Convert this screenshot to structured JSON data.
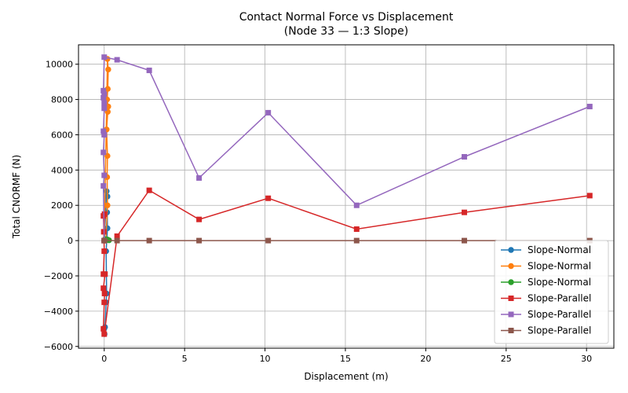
{
  "chart_data": {
    "type": "line",
    "title": "Contact Normal Force vs Displacement",
    "subtitle": "(Node 33 — 1:3 Slope)",
    "xlabel": "Displacement (m)",
    "ylabel": "Total CNORMF (N)",
    "xlim": [
      -1.6,
      31.7
    ],
    "ylim": [
      -6100,
      11100
    ],
    "xticks": [
      "0",
      "5",
      "10",
      "15",
      "20",
      "25",
      "30"
    ],
    "xtick_values": [
      0,
      5,
      10,
      15,
      20,
      25,
      30
    ],
    "yticks": [
      "−6000",
      "−4000",
      "−2000",
      "0",
      "2000",
      "4000",
      "6000",
      "8000",
      "10000"
    ],
    "ytick_values": [
      -6000,
      -4000,
      -2000,
      0,
      2000,
      4000,
      6000,
      8000,
      10000
    ],
    "grid": true,
    "legend_position": "lower-right",
    "series": [
      {
        "name": "Slope-Normal",
        "color": "#1f77b4",
        "marker": "circle",
        "points": [
          [
            0,
            0
          ],
          [
            0.15,
            2800
          ],
          [
            0.2,
            2500
          ],
          [
            0.18,
            1600
          ],
          [
            0.2,
            700
          ],
          [
            0.12,
            -600
          ],
          [
            0.15,
            -3000
          ],
          [
            0.12,
            -3500
          ],
          [
            0.05,
            -4900
          ],
          [
            0.02,
            -5300
          ],
          [
            0,
            -5000
          ]
        ]
      },
      {
        "name": "Slope-Normal",
        "color": "#ff7f0e",
        "marker": "circle",
        "points": [
          [
            0,
            0
          ],
          [
            0.2,
            10300
          ],
          [
            0.25,
            9700
          ],
          [
            0.22,
            8600
          ],
          [
            0.18,
            8000
          ],
          [
            0.25,
            7600
          ],
          [
            0.22,
            7300
          ],
          [
            0.15,
            6300
          ],
          [
            0.2,
            4800
          ],
          [
            0.18,
            3600
          ],
          [
            0.2,
            2000
          ],
          [
            0.1,
            0
          ]
        ]
      },
      {
        "name": "Slope-Normal",
        "color": "#2ca02c",
        "marker": "circle",
        "points": [
          [
            0,
            0
          ],
          [
            0.05,
            80
          ],
          [
            0.1,
            60
          ],
          [
            0.15,
            40
          ],
          [
            0.2,
            60
          ],
          [
            0.25,
            30
          ],
          [
            0.3,
            20
          ]
        ]
      },
      {
        "name": "Slope-Parallel",
        "color": "#d62728",
        "marker": "square",
        "points": [
          [
            0,
            0
          ],
          [
            -0.05,
            1400
          ],
          [
            0.02,
            1500
          ],
          [
            -0.03,
            500
          ],
          [
            0,
            -600
          ],
          [
            -0.05,
            -1900
          ],
          [
            0.05,
            -1900
          ],
          [
            -0.05,
            -2700
          ],
          [
            0.02,
            -3000
          ],
          [
            0,
            -3500
          ],
          [
            -0.05,
            -5000
          ],
          [
            0,
            -5300
          ],
          [
            0.8,
            250
          ],
          [
            2.8,
            2850
          ],
          [
            5.9,
            1200
          ],
          [
            10.2,
            2400
          ],
          [
            15.7,
            650
          ],
          [
            22.4,
            1600
          ],
          [
            30.2,
            2550
          ]
        ]
      },
      {
        "name": "Slope-Parallel",
        "color": "#9467bd",
        "marker": "square",
        "points": [
          [
            0,
            0
          ],
          [
            -0.05,
            3100
          ],
          [
            0,
            3700
          ],
          [
            -0.05,
            5000
          ],
          [
            0,
            6000
          ],
          [
            -0.05,
            6200
          ],
          [
            0,
            7500
          ],
          [
            0,
            7800
          ],
          [
            -0.05,
            8100
          ],
          [
            0,
            8300
          ],
          [
            -0.05,
            8500
          ],
          [
            0,
            10400
          ],
          [
            0.8,
            10250
          ],
          [
            2.8,
            9650
          ],
          [
            5.9,
            3550
          ],
          [
            10.2,
            7250
          ],
          [
            15.7,
            2000
          ],
          [
            22.4,
            4750
          ],
          [
            30.2,
            7600
          ]
        ]
      },
      {
        "name": "Slope-Parallel",
        "color": "#8c564b",
        "marker": "square",
        "points": [
          [
            0,
            0
          ],
          [
            0.8,
            0
          ],
          [
            2.8,
            0
          ],
          [
            5.9,
            0
          ],
          [
            10.2,
            0
          ],
          [
            15.7,
            0
          ],
          [
            22.4,
            0
          ],
          [
            30.2,
            0
          ]
        ]
      }
    ]
  }
}
